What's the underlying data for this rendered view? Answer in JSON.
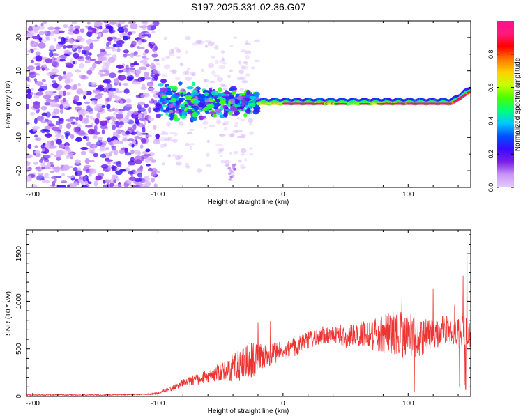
{
  "figure_title": "S197.2025.331.02.36.G07",
  "chart_data": [
    {
      "type": "heatmap",
      "title": "S197.2025.331.02.36.G07",
      "xlabel": "Height of straight line (km)",
      "ylabel": "Frequency (Hz)",
      "xlim": [
        -205,
        150
      ],
      "ylim": [
        -25,
        25
      ],
      "xticks": [
        -200,
        -100,
        0,
        100
      ],
      "yticks": [
        -20,
        -10,
        0,
        10,
        20
      ],
      "colorbar": {
        "label": "Normalized spectral amplitude",
        "range": [
          0,
          1
        ],
        "ticks": [
          "0.0",
          "0.2",
          "0.4",
          "0.6",
          "0.8"
        ],
        "colors": [
          "#e6ccff",
          "#c896f5",
          "#7a1fe8",
          "#3a0aff",
          "#0050ff",
          "#00c8ff",
          "#00ff7a",
          "#48ff00",
          "#c8ff00",
          "#ffd000",
          "#ff7800",
          "#ff0000",
          "#ff1a7a",
          "#ff0f8c"
        ]
      },
      "features": [
        {
          "name": "noise",
          "x_range": [
            -205,
            -100
          ],
          "f_range": [
            -25,
            25
          ],
          "amplitude": [
            0.02,
            0.25
          ]
        },
        {
          "name": "transition",
          "x_range": [
            -100,
            -20
          ],
          "f_range": [
            -10,
            8
          ],
          "amplitude": [
            0.1,
            0.55
          ]
        },
        {
          "name": "carrier",
          "x_range": [
            -20,
            150
          ],
          "f_center": 0,
          "amplitude": [
            0.5,
            1.0
          ]
        },
        {
          "name": "spur",
          "x_range": [
            -45,
            -38
          ],
          "f_range": [
            -23,
            -18
          ],
          "amplitude": [
            0.05,
            0.15
          ]
        }
      ]
    },
    {
      "type": "line",
      "xlabel": "Height of straight line (km)",
      "ylabel": "SNR (10 * v/v)",
      "xlim": [
        -205,
        150
      ],
      "ylim": [
        0,
        1750
      ],
      "xticks": [
        -200,
        -100,
        0,
        100
      ],
      "yticks": [
        0,
        500,
        1000,
        1500
      ],
      "color": "#ee3333",
      "series": [
        {
          "name": "SNR",
          "x": [
            -205,
            -190,
            -175,
            -160,
            -145,
            -130,
            -115,
            -105,
            -100,
            -95,
            -90,
            -85,
            -80,
            -75,
            -70,
            -65,
            -60,
            -55,
            -50,
            -45,
            -40,
            -35,
            -30,
            -25,
            -20,
            -15,
            -10,
            -5,
            0,
            5,
            10,
            15,
            20,
            25,
            30,
            35,
            40,
            45,
            50,
            55,
            60,
            65,
            70,
            75,
            80,
            85,
            90,
            95,
            100,
            105,
            110,
            115,
            120,
            125,
            130,
            135,
            140,
            145,
            150
          ],
          "y": [
            15,
            15,
            15,
            15,
            15,
            18,
            20,
            25,
            35,
            60,
            80,
            110,
            140,
            160,
            175,
            190,
            210,
            230,
            260,
            280,
            300,
            330,
            360,
            380,
            400,
            420,
            440,
            460,
            480,
            500,
            520,
            560,
            600,
            620,
            640,
            650,
            650,
            640,
            630,
            640,
            650,
            660,
            650,
            650,
            660,
            670,
            680,
            660,
            650,
            640,
            620,
            640,
            660,
            680,
            700,
            720,
            700,
            680,
            650
          ],
          "jitter": [
            5,
            5,
            5,
            5,
            5,
            6,
            6,
            8,
            10,
            18,
            25,
            35,
            45,
            50,
            55,
            60,
            70,
            80,
            100,
            120,
            150,
            170,
            180,
            190,
            150,
            130,
            120,
            110,
            100,
            100,
            100,
            100,
            100,
            100,
            100,
            100,
            100,
            110,
            120,
            130,
            140,
            150,
            160,
            180,
            200,
            220,
            250,
            260,
            240,
            230,
            200,
            180,
            170,
            160,
            160,
            170,
            180,
            200,
            150
          ],
          "peaks": [
            {
              "x": 120,
              "y": 1130
            },
            {
              "x": 95,
              "y": 1100
            },
            {
              "x": 144,
              "y": 1270
            },
            {
              "x": 147,
              "y": 1730
            },
            {
              "x": 137,
              "y": 960
            },
            {
              "x": -20,
              "y": 780
            },
            {
              "x": -10,
              "y": 790
            }
          ],
          "dips": [
            {
              "x": 105,
              "y": 50
            },
            {
              "x": 141,
              "y": 100
            },
            {
              "x": 145,
              "y": 120
            },
            {
              "x": 146,
              "y": 70
            }
          ]
        }
      ]
    }
  ]
}
